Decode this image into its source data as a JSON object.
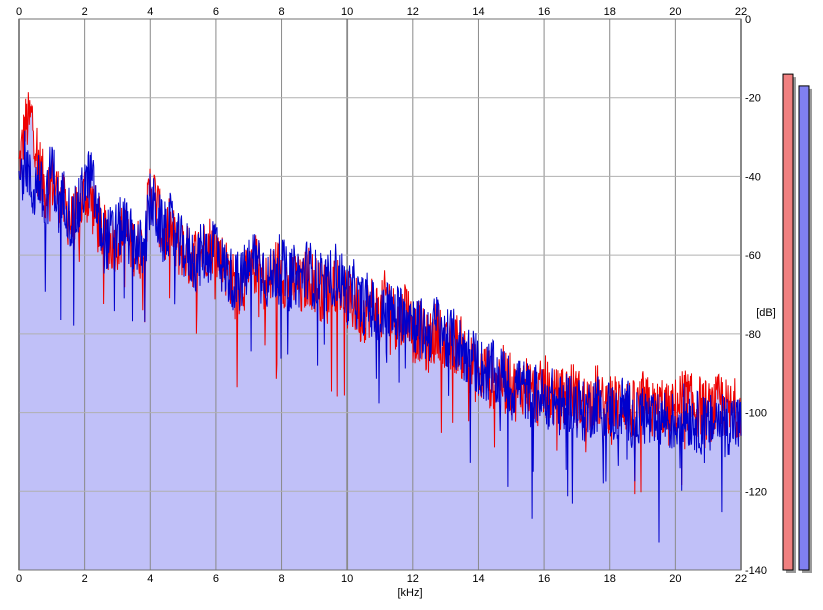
{
  "chart_data": {
    "type": "line",
    "title": "",
    "xlabel": "[kHz]",
    "ylabel": "[dB]",
    "xlim": [
      0,
      22
    ],
    "ylim": [
      -140,
      0
    ],
    "x_ticks": [
      0,
      2,
      4,
      6,
      8,
      10,
      12,
      14,
      16,
      18,
      20,
      22
    ],
    "x_tick_labels": [
      "0",
      "2",
      "4",
      "6",
      "8",
      "10",
      "12",
      "14",
      "16",
      "18",
      "20",
      "22"
    ],
    "y_ticks": [
      0,
      -20,
      -40,
      -60,
      -80,
      -100,
      -120,
      -140
    ],
    "y_tick_labels": [
      "0",
      "-20",
      "-40",
      "-60",
      "-80",
      "-100",
      "-120",
      "-140"
    ],
    "grid": true,
    "series": [
      {
        "color": "#ee0000",
        "x": [
          0,
          0.2,
          0.4,
          0.6,
          0.8,
          1,
          1.2,
          1.4,
          1.6,
          1.8,
          2,
          2.2,
          2.4,
          2.6,
          2.8,
          3,
          3.2,
          3.4,
          3.6,
          3.8,
          4,
          4.2,
          4.4,
          4.6,
          4.8,
          5,
          5.2,
          5.4,
          5.6,
          5.8,
          6,
          6.2,
          6.4,
          6.6,
          6.8,
          7,
          7.2,
          7.4,
          7.6,
          7.8,
          8,
          8.2,
          8.4,
          8.6,
          8.8,
          9,
          9.2,
          9.4,
          9.6,
          9.8,
          10,
          10.2,
          10.4,
          10.6,
          10.8,
          11,
          11.2,
          11.4,
          11.6,
          11.8,
          12,
          12.2,
          12.4,
          12.6,
          12.8,
          13,
          13.2,
          13.4,
          13.6,
          13.8,
          14,
          14.2,
          14.4,
          14.6,
          14.8,
          15,
          15.2,
          15.4,
          15.6,
          15.8,
          16,
          16.2,
          16.4,
          16.6,
          16.8,
          17,
          17.2,
          17.4,
          17.6,
          17.8,
          18,
          18.2,
          18.4,
          18.6,
          18.8,
          19,
          19.2,
          19.4,
          19.6,
          19.8,
          20,
          20.2,
          20.4,
          20.6,
          20.8,
          21,
          21.2,
          21.4,
          21.6,
          21.8,
          22
        ],
        "values": [
          -38,
          -27,
          -25,
          -36,
          -44,
          -41,
          -45,
          -48,
          -52,
          -50,
          -44,
          -46,
          -52,
          -55,
          -57,
          -56,
          -54,
          -57,
          -58,
          -59,
          -42,
          -47,
          -56,
          -53,
          -58,
          -58,
          -61,
          -60,
          -59,
          -57,
          -58,
          -62,
          -64,
          -69,
          -66,
          -67,
          -62,
          -66,
          -68,
          -63,
          -64,
          -68,
          -66,
          -69,
          -65,
          -67,
          -69,
          -70,
          -66,
          -68,
          -72,
          -72,
          -75,
          -74,
          -72,
          -76,
          -70,
          -75,
          -78,
          -72,
          -80,
          -79,
          -83,
          -81,
          -78,
          -85,
          -83,
          -82,
          -86,
          -88,
          -91,
          -89,
          -92,
          -90,
          -91,
          -93,
          -95,
          -92,
          -94,
          -96,
          -93,
          -95,
          -97,
          -96,
          -94,
          -96,
          -98,
          -97,
          -95,
          -99,
          -97,
          -98,
          -96,
          -99,
          -100,
          -97,
          -99,
          -100,
          -98,
          -101,
          -99,
          -96,
          -97,
          -99,
          -98,
          -100,
          -99,
          -97,
          -100,
          -99,
          -98
        ]
      },
      {
        "color": "#0000cc",
        "x": [
          0,
          0.2,
          0.4,
          0.6,
          0.8,
          1,
          1.2,
          1.4,
          1.6,
          1.8,
          2,
          2.2,
          2.4,
          2.6,
          2.8,
          3,
          3.2,
          3.4,
          3.6,
          3.8,
          4,
          4.2,
          4.4,
          4.6,
          4.8,
          5,
          5.2,
          5.4,
          5.6,
          5.8,
          6,
          6.2,
          6.4,
          6.6,
          6.8,
          7,
          7.2,
          7.4,
          7.6,
          7.8,
          8,
          8.2,
          8.4,
          8.6,
          8.8,
          9,
          9.2,
          9.4,
          9.6,
          9.8,
          10,
          10.2,
          10.4,
          10.6,
          10.8,
          11,
          11.2,
          11.4,
          11.6,
          11.8,
          12,
          12.2,
          12.4,
          12.6,
          12.8,
          13,
          13.2,
          13.4,
          13.6,
          13.8,
          14,
          14.2,
          14.4,
          14.6,
          14.8,
          15,
          15.2,
          15.4,
          15.6,
          15.8,
          16,
          16.2,
          16.4,
          16.6,
          16.8,
          17,
          17.2,
          17.4,
          17.6,
          17.8,
          18,
          18.2,
          18.4,
          18.6,
          18.8,
          19,
          19.2,
          19.4,
          19.6,
          19.8,
          20,
          20.2,
          20.4,
          20.6,
          20.8,
          21,
          21.2,
          21.4,
          21.6,
          21.8,
          22
        ],
        "values": [
          -42,
          -35,
          -45,
          -40,
          -50,
          -36,
          -48,
          -45,
          -52,
          -49,
          -42,
          -40,
          -50,
          -57,
          -55,
          -54,
          -52,
          -56,
          -57,
          -60,
          -46,
          -50,
          -55,
          -52,
          -57,
          -58,
          -60,
          -62,
          -59,
          -60,
          -55,
          -63,
          -65,
          -67,
          -66,
          -63,
          -60,
          -62,
          -67,
          -64,
          -62,
          -67,
          -65,
          -66,
          -63,
          -66,
          -67,
          -68,
          -64,
          -66,
          -70,
          -69,
          -73,
          -72,
          -74,
          -78,
          -72,
          -76,
          -75,
          -73,
          -77,
          -78,
          -80,
          -79,
          -76,
          -82,
          -81,
          -83,
          -85,
          -86,
          -88,
          -90,
          -89,
          -92,
          -90,
          -95,
          -92,
          -94,
          -96,
          -95,
          -97,
          -96,
          -98,
          -99,
          -97,
          -98,
          -100,
          -99,
          -97,
          -100,
          -99,
          -101,
          -98,
          -100,
          -103,
          -100,
          -102,
          -104,
          -101,
          -102,
          -103,
          -100,
          -101,
          -102,
          -103,
          -104,
          -102,
          -101,
          -103,
          -102,
          -104
        ]
      }
    ],
    "meter": [
      {
        "color": "#f08080",
        "value_db": -14
      },
      {
        "color": "#8080f0",
        "value_db": -17
      }
    ]
  }
}
